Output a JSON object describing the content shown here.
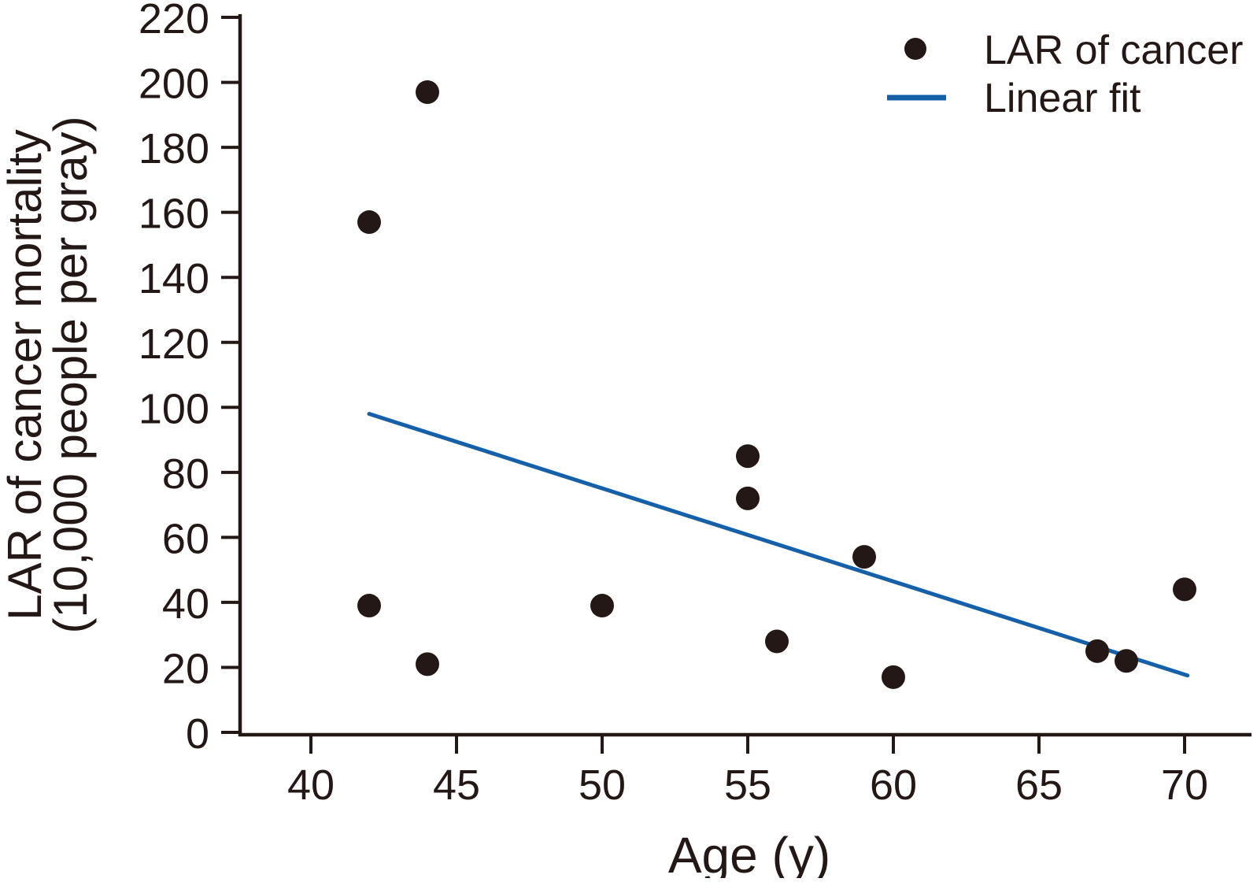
{
  "colors": {
    "ink": "#231815",
    "accent_blue": "#1560a9",
    "background": "#ffffff"
  },
  "chart_data": {
    "type": "scatter",
    "title": "",
    "xlabel": "Age (y)",
    "ylabel_line1": "LAR of cancer mortality",
    "ylabel_line2": "(10,000 people per gray)",
    "xlim": [
      37.5,
      72.5
    ],
    "ylim": [
      0,
      220
    ],
    "xticks": [
      40,
      45,
      50,
      55,
      60,
      65,
      70
    ],
    "yticks": [
      0,
      20,
      40,
      60,
      80,
      100,
      120,
      140,
      160,
      180,
      200,
      220
    ],
    "grid": false,
    "legend_position": "top-right",
    "series": [
      {
        "name": "LAR of cancer",
        "type": "scatter",
        "marker": "dot",
        "color": "#231815",
        "points": [
          [
            42,
            39
          ],
          [
            42,
            157
          ],
          [
            44,
            21
          ],
          [
            44,
            197
          ],
          [
            50,
            39
          ],
          [
            55,
            72
          ],
          [
            55,
            85
          ],
          [
            56,
            28
          ],
          [
            59,
            54
          ],
          [
            60,
            17
          ],
          [
            67,
            25
          ],
          [
            68,
            22
          ],
          [
            70,
            44
          ]
        ]
      },
      {
        "name": "Linear fit",
        "type": "line",
        "marker": "line",
        "color": "#1560a9",
        "points": [
          [
            42,
            98
          ],
          [
            70.1,
            17.5
          ]
        ]
      }
    ]
  }
}
